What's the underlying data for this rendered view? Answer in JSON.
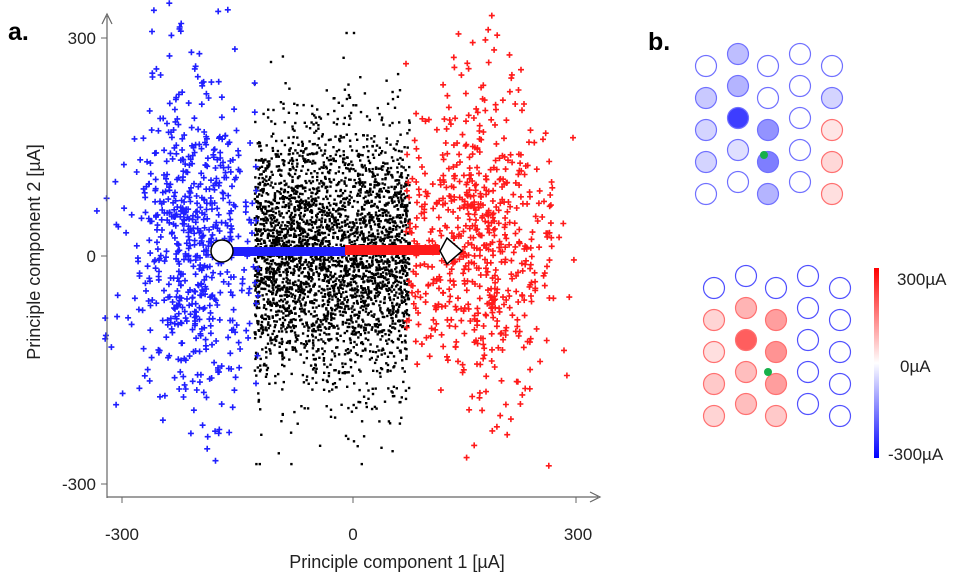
{
  "panels": {
    "a_label": "a.",
    "b_label": "b."
  },
  "chart_data": {
    "type": "scatter",
    "title": "",
    "xlabel": "Principle component 1 [µA]",
    "ylabel": "Principle component 2 [µA]",
    "xlim": [
      -300,
      300
    ],
    "ylim": [
      -300,
      300
    ],
    "xticks": [
      "-300",
      "0",
      "300"
    ],
    "yticks": [
      "-300",
      "0",
      "300"
    ],
    "grid": false,
    "legend": "none",
    "series": [
      {
        "color": "#000000",
        "marker": "dot",
        "count": 3600,
        "x_range": [
          -130,
          75
        ],
        "y_range": [
          -280,
          300
        ]
      },
      {
        "color": "#1f1fff",
        "marker": "plus",
        "count": 650,
        "x_range": [
          -300,
          -125
        ],
        "y_range": [
          -270,
          310
        ]
      },
      {
        "color": "#ff1a1a",
        "marker": "plus",
        "count": 650,
        "x_range": [
          70,
          270
        ],
        "y_range": [
          -250,
          290
        ]
      }
    ],
    "annotations": [
      {
        "type": "arrow",
        "from": [
          -180,
          5
        ],
        "to": [
          -15,
          5
        ],
        "color": "#1f1fff",
        "head": "circle"
      },
      {
        "type": "arrow",
        "from": [
          -15,
          5
        ],
        "to": [
          140,
          5
        ],
        "color": "#ff1a1a",
        "head": "diamond"
      }
    ],
    "electrode_maps": [
      {
        "name": "top",
        "values": [
          0,
          0.3,
          0,
          0,
          0,
          0.25,
          0.35,
          0,
          0,
          0.2,
          0.2,
          0.9,
          0.5,
          0,
          0.2,
          0.2,
          0.15,
          0.6,
          0,
          0.3,
          0,
          0,
          0.35,
          0,
          0.25
        ]
      },
      {
        "name": "bottom",
        "values": [
          0,
          0,
          0,
          0,
          0,
          0.2,
          0.35,
          0.45,
          0,
          0,
          0.15,
          0.75,
          0.5,
          0,
          0,
          0.25,
          0.3,
          0.45,
          0,
          0,
          0.2,
          0.3,
          0.25,
          0,
          0
        ]
      }
    ],
    "colorbar": {
      "max_label": "300µA",
      "mid_label": "0µA",
      "min_label": "-300µA",
      "max_color": "#ff0000",
      "mid_color": "#ffffff",
      "min_color": "#0000ff"
    }
  }
}
